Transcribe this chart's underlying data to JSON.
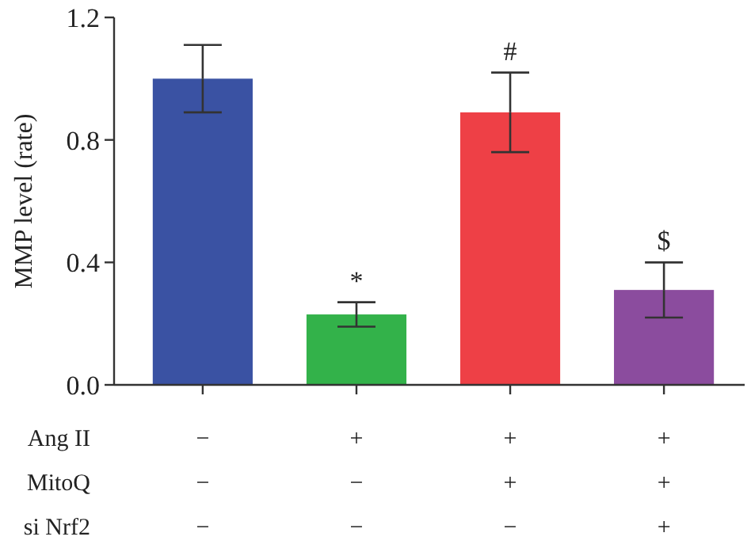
{
  "chart_data": {
    "type": "bar",
    "ylabel": "MMP level (rate)",
    "categories": [
      "−\n−\n−",
      "+\n−\n−",
      "+\n+\n−",
      "+\n+\n+"
    ],
    "values": [
      1.0,
      0.23,
      0.89,
      0.31
    ],
    "errors": [
      0.11,
      0.04,
      0.13,
      0.09
    ],
    "colors": [
      "#3a52a3",
      "#33b24a",
      "#ee4046",
      "#8b4c9e"
    ],
    "ylim": [
      0,
      1.2
    ],
    "yticks": [
      {
        "value": 0,
        "label": "0.0"
      },
      {
        "value": 0.4,
        "label": "0.4"
      },
      {
        "value": 0.8,
        "label": "0.8"
      },
      {
        "value": 1.2,
        "label": "1.2"
      }
    ],
    "annotations": [
      "Ang II",
      "MitoQ",
      "si Nrf2",
      "*",
      "#",
      "$"
    ]
  }
}
